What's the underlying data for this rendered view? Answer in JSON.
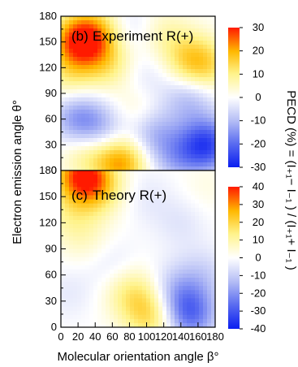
{
  "chart_data": [
    {
      "type": "heatmap",
      "title": "Experiment R(+)",
      "panel_tag": "(b)",
      "xlabel": "Molecular orientation angle β°",
      "ylabel": "Electron emission angle θ°",
      "xlim": [
        0,
        180
      ],
      "ylim": [
        0,
        180
      ],
      "x_ticks": [
        "0",
        "20",
        "40",
        "60",
        "80",
        "100",
        "120",
        "140",
        "160",
        "180"
      ],
      "y_ticks": [
        "0",
        "30",
        "60",
        "90",
        "120",
        "150",
        "180"
      ],
      "colorbar": {
        "ticks": [
          "-30",
          "-20",
          "-10",
          "0",
          "10",
          "20",
          "30"
        ],
        "vmin": -30,
        "vmax": 30
      },
      "grid": false,
      "features": [
        {
          "beta": 20,
          "theta": 150,
          "value": 24
        },
        {
          "beta": 40,
          "theta": 160,
          "value": 14
        },
        {
          "beta": 55,
          "theta": 125,
          "value": 10
        },
        {
          "beta": 10,
          "theta": 110,
          "value": 8
        },
        {
          "beta": 150,
          "theta": 130,
          "value": 12
        },
        {
          "beta": 170,
          "theta": 120,
          "value": 10
        },
        {
          "beta": 70,
          "theta": 10,
          "value": 22
        },
        {
          "beta": 30,
          "theta": 20,
          "value": 9
        },
        {
          "beta": 90,
          "theta": 65,
          "value": 7
        },
        {
          "beta": 120,
          "theta": 160,
          "value": 6
        },
        {
          "beta": 20,
          "theta": 60,
          "value": -14
        },
        {
          "beta": 50,
          "theta": 45,
          "value": -10
        },
        {
          "beta": 105,
          "theta": 45,
          "value": -12
        },
        {
          "beta": 150,
          "theta": 85,
          "value": -10
        },
        {
          "beta": 170,
          "theta": 30,
          "value": -24
        },
        {
          "beta": 135,
          "theta": 15,
          "value": -10
        },
        {
          "beta": 80,
          "theta": 165,
          "value": -5
        },
        {
          "beta": 100,
          "theta": 110,
          "value": -4
        }
      ]
    },
    {
      "type": "heatmap",
      "title": "Theory R(+)",
      "panel_tag": "(c)",
      "xlabel": "Molecular orientation angle β°",
      "ylabel": "Electron emission angle θ°",
      "xlim": [
        0,
        180
      ],
      "ylim": [
        0,
        180
      ],
      "x_ticks": [
        "0",
        "20",
        "40",
        "60",
        "80",
        "100",
        "120",
        "140",
        "160",
        "180"
      ],
      "y_ticks": [
        "0",
        "30",
        "60",
        "90",
        "120",
        "150",
        "180"
      ],
      "colorbar": {
        "ticks": [
          "-40",
          "-30",
          "-20",
          "-10",
          "0",
          "10",
          "20",
          "30",
          "40"
        ],
        "vmin": -40,
        "vmax": 40
      },
      "grid": false,
      "features": [
        {
          "beta": 25,
          "theta": 175,
          "value": 36
        },
        {
          "beta": 45,
          "theta": 160,
          "value": 14
        },
        {
          "beta": 10,
          "theta": 130,
          "value": 8
        },
        {
          "beta": 30,
          "theta": 100,
          "value": 6
        },
        {
          "beta": 95,
          "theta": 30,
          "value": 12
        },
        {
          "beta": 75,
          "theta": 45,
          "value": 8
        },
        {
          "beta": 110,
          "theta": 10,
          "value": 14
        },
        {
          "beta": 150,
          "theta": 15,
          "value": -26
        },
        {
          "beta": 130,
          "theta": 40,
          "value": -12
        },
        {
          "beta": 165,
          "theta": 60,
          "value": -8
        },
        {
          "beta": 60,
          "theta": 70,
          "value": -6
        },
        {
          "beta": 140,
          "theta": 120,
          "value": -5
        },
        {
          "beta": 100,
          "theta": 150,
          "value": -4
        },
        {
          "beta": 10,
          "theta": 40,
          "value": -4
        },
        {
          "beta": 170,
          "theta": 160,
          "value": 3
        }
      ]
    }
  ],
  "shared_colorbar_label": "PECD (%) = (I₊₁− I₋₁ ) / (I₊₁+ I₋₁ )"
}
